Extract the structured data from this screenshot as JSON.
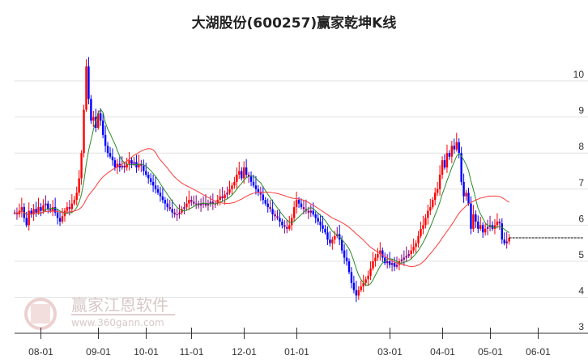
{
  "chart_data": {
    "type": "candlestick",
    "title": "大湖股份(600257)赢家乾坤K线",
    "ylim": [
      3,
      10.6
    ],
    "yticks": [
      3,
      4,
      5,
      6,
      7,
      8,
      9,
      10
    ],
    "grid": true,
    "colors": {
      "up": "#ff0000",
      "down": "#0000ff",
      "flat": "#800080",
      "ma_short": "#2a8a2a",
      "ma_long": "#ff3b3b",
      "last_line": "#000000"
    },
    "x_ticks": [
      {
        "label": "08-01",
        "index": 11
      },
      {
        "label": "09-01",
        "index": 35
      },
      {
        "label": "10-01",
        "index": 55
      },
      {
        "label": "11-01",
        "index": 74
      },
      {
        "label": "12-01",
        "index": 96
      },
      {
        "label": "01-01",
        "index": 118
      },
      {
        "label": "03-01",
        "index": 157
      },
      {
        "label": "04-01",
        "index": 179
      },
      {
        "label": "05-01",
        "index": 199
      },
      {
        "label": "06-01",
        "index": 219
      }
    ],
    "closes": [
      6.35,
      6.3,
      6.4,
      6.5,
      6.2,
      6.0,
      6.4,
      6.3,
      6.45,
      6.35,
      6.5,
      6.4,
      6.55,
      6.6,
      6.45,
      6.4,
      6.5,
      6.35,
      6.2,
      6.1,
      6.25,
      6.4,
      6.5,
      6.45,
      6.6,
      6.7,
      6.9,
      7.3,
      8.0,
      9.2,
      10.4,
      9.5,
      8.9,
      9.0,
      8.7,
      9.1,
      8.9,
      8.5,
      8.2,
      8.0,
      7.9,
      7.8,
      7.6,
      7.7,
      7.6,
      7.65,
      7.6,
      7.7,
      7.8,
      7.7,
      7.75,
      7.6,
      7.7,
      7.65,
      7.5,
      7.4,
      7.3,
      7.2,
      7.1,
      7.0,
      6.9,
      6.8,
      6.7,
      6.6,
      6.5,
      6.45,
      6.35,
      6.3,
      6.3,
      6.35,
      6.45,
      6.5,
      6.6,
      6.7,
      6.65,
      6.6,
      6.6,
      6.55,
      6.6,
      6.6,
      6.55,
      6.6,
      6.65,
      6.6,
      6.6,
      6.7,
      6.8,
      6.75,
      6.85,
      6.9,
      7.0,
      7.1,
      7.2,
      7.4,
      7.5,
      7.3,
      7.6,
      7.4,
      7.35,
      7.2,
      7.1,
      7.0,
      6.9,
      6.85,
      6.7,
      6.6,
      6.5,
      6.45,
      6.3,
      6.25,
      6.2,
      6.1,
      6.0,
      5.95,
      5.9,
      6.0,
      6.2,
      6.5,
      6.7,
      6.6,
      6.5,
      6.45,
      6.4,
      6.35,
      6.4,
      6.3,
      6.2,
      6.1,
      6.0,
      5.9,
      5.8,
      5.6,
      5.5,
      5.6,
      5.7,
      5.75,
      5.6,
      5.3,
      5.1,
      5.0,
      4.7,
      4.4,
      4.2,
      4.05,
      4.2,
      4.3,
      4.4,
      4.5,
      4.6,
      4.8,
      5.0,
      5.1,
      5.2,
      5.3,
      5.1,
      4.95,
      5.0,
      4.9,
      4.95,
      4.85,
      4.9,
      5.0,
      5.05,
      5.1,
      5.15,
      5.2,
      5.3,
      5.4,
      5.5,
      5.7,
      5.9,
      6.0,
      6.2,
      6.4,
      6.5,
      6.7,
      6.9,
      7.0,
      7.4,
      7.8,
      7.6,
      8.0,
      7.9,
      8.2,
      8.1,
      8.3,
      8.0,
      7.2,
      6.8,
      6.9,
      6.6,
      5.9,
      6.3,
      6.1,
      5.9,
      6.0,
      5.8,
      5.9,
      5.95,
      6.0,
      5.9,
      6.0,
      6.1,
      6.05,
      5.6,
      5.5,
      5.55,
      5.65
    ],
    "ma_periods": [
      8,
      30
    ]
  },
  "watermark": {
    "name": "赢家江恩软件",
    "url": "www.360gann.com",
    "seal": "江恩赢家"
  }
}
